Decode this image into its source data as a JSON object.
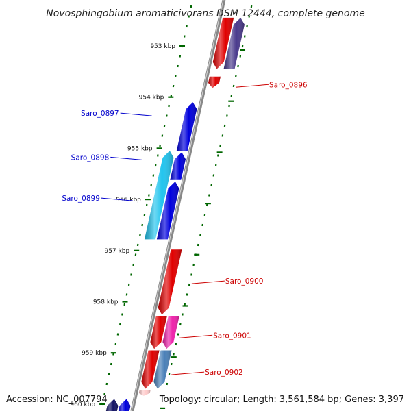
{
  "title": "Novosphingobium aromaticivorans DSM 12444, complete genome",
  "accession": "Accession: NC_007794",
  "topology": "Topology: circular; Length: 3,561,584 bp; Genes: 3,397",
  "colors": {
    "forward": "#dd0000",
    "reverse": "#0000dd",
    "backbone": "#888888",
    "tick": "#006600"
  },
  "ticks": [
    {
      "label": "953 kbp",
      "kbp": 953
    },
    {
      "label": "954 kbp",
      "kbp": 954
    },
    {
      "label": "955 kbp",
      "kbp": 955
    },
    {
      "label": "956 kbp",
      "kbp": 956
    },
    {
      "label": "957 kbp",
      "kbp": 957
    },
    {
      "label": "958 kbp",
      "kbp": 958
    },
    {
      "label": "959 kbp",
      "kbp": 959
    },
    {
      "label": "960 kbp",
      "kbp": 960
    }
  ],
  "labels": [
    {
      "name": "Saro_0896",
      "side": "right",
      "color": "#cc0000",
      "kbp": 953.78
    },
    {
      "name": "Saro_0897",
      "side": "left",
      "color": "#0000cc",
      "kbp": 954.34
    },
    {
      "name": "Saro_0898",
      "side": "left",
      "color": "#0000cc",
      "kbp": 955.2
    },
    {
      "name": "Saro_0899",
      "side": "left",
      "color": "#0000cc",
      "kbp": 956.0
    },
    {
      "name": "Saro_0900",
      "side": "right",
      "color": "#cc0000",
      "kbp": 957.62
    },
    {
      "name": "Saro_0901",
      "side": "right",
      "color": "#cc0000",
      "kbp": 958.68
    },
    {
      "name": "Saro_0902",
      "side": "right",
      "color": "#cc0000",
      "kbp": 959.4
    }
  ],
  "genes": [
    {
      "id": "g1",
      "start": 952.45,
      "end": 953.45,
      "strand": "forward",
      "lane": 1,
      "color": "#e00000"
    },
    {
      "id": "g2",
      "start": 952.45,
      "end": 953.45,
      "strand": "reverse",
      "lane": 2,
      "color": "#4a3a8c"
    },
    {
      "id": "g3",
      "start": 953.6,
      "end": 953.82,
      "strand": "forward",
      "lane": 1,
      "color": "#e00000"
    },
    {
      "id": "g4",
      "start": 954.1,
      "end": 955.05,
      "strand": "reverse",
      "lane": -1,
      "color": "#0000dd"
    },
    {
      "id": "g5",
      "start": 955.08,
      "end": 955.62,
      "strand": "reverse",
      "lane": -1,
      "color": "#0000dd"
    },
    {
      "id": "g6",
      "start": 955.65,
      "end": 956.78,
      "strand": "reverse",
      "lane": -1,
      "color": "#0000dd"
    },
    {
      "id": "g7",
      "start": 955.05,
      "end": 956.78,
      "strand": "reverse",
      "lane": -2,
      "color": "#22c4ee"
    },
    {
      "id": "g8",
      "start": 956.98,
      "end": 958.25,
      "strand": "forward",
      "lane": 1,
      "color": "#e00000"
    },
    {
      "id": "g9",
      "start": 958.28,
      "end": 958.92,
      "strand": "forward",
      "lane": 1,
      "color": "#e00000"
    },
    {
      "id": "g10",
      "start": 958.28,
      "end": 958.92,
      "strand": "forward",
      "lane": 2,
      "color": "#ee22aa"
    },
    {
      "id": "g11",
      "start": 958.95,
      "end": 959.7,
      "strand": "forward",
      "lane": 1,
      "color": "#e00000"
    },
    {
      "id": "g12",
      "start": 958.95,
      "end": 959.7,
      "strand": "forward",
      "lane": 2,
      "color": "#4a80b8"
    },
    {
      "id": "g13",
      "start": 959.72,
      "end": 959.84,
      "strand": "forward",
      "lane": 1,
      "color": "#ffcccc"
    },
    {
      "id": "g14",
      "start": 959.9,
      "end": 960.2,
      "strand": "reverse",
      "lane": -1,
      "color": "#0000dd"
    },
    {
      "id": "g15",
      "start": 959.9,
      "end": 960.2,
      "strand": "reverse",
      "lane": -2,
      "color": "#141466"
    }
  ]
}
